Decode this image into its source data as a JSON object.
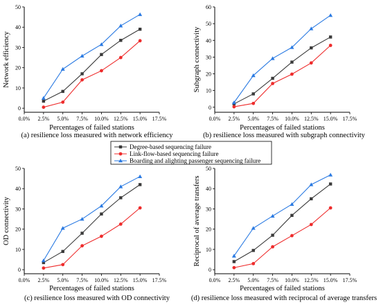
{
  "legend": [
    {
      "label": "Degree-based sequencing failure",
      "color": "#3a3a3a",
      "marker": "square"
    },
    {
      "label": "Link-flow-based sequencing failure",
      "color": "#ee2c2c",
      "marker": "circle"
    },
    {
      "label": "Boarding and alighting passenger sequencing failure",
      "color": "#2a7ae2",
      "marker": "triangle"
    }
  ],
  "chart_data": [
    {
      "type": "line",
      "caption": "(a) resilience loss measured with network efficiency",
      "xlabel": "Percentages of failed stations",
      "ylabel": "Network efficiency",
      "xlim": [
        0,
        17.5
      ],
      "ylim": [
        -2,
        50
      ],
      "xticks": [
        "0.0%",
        "2.5%",
        "5.0%",
        "7.5%",
        "10.0%",
        "12.5%",
        "15.0%",
        "17.5%"
      ],
      "yticks": [
        0,
        10,
        20,
        30,
        40,
        50
      ],
      "x": [
        2.5,
        5.0,
        7.5,
        10.0,
        12.5,
        15.0
      ],
      "series": [
        {
          "name": "Degree-based sequencing failure",
          "values": [
            3.5,
            8.3,
            17,
            26.5,
            33.5,
            39
          ]
        },
        {
          "name": "Link-flow-based sequencing failure",
          "values": [
            0.5,
            3,
            14,
            18.5,
            25,
            33.3
          ]
        },
        {
          "name": "Boarding and alighting passenger sequencing failure",
          "values": [
            5,
            19.3,
            25.8,
            31.5,
            40.7,
            46.3
          ]
        }
      ]
    },
    {
      "type": "line",
      "caption": "(b) resilience loss measured with subgraph connectivity",
      "xlabel": "Percentages of failed stations",
      "ylabel": "Subgraph connectivity",
      "xlim": [
        0,
        17.5
      ],
      "ylim": [
        -3,
        60
      ],
      "xticks": [
        "0.0%",
        "2.5%",
        "5.0%",
        "7.5%",
        "10.0%",
        "12.5%",
        "15.0%",
        "17.5%"
      ],
      "yticks": [
        0,
        10,
        20,
        30,
        40,
        50,
        60
      ],
      "x": [
        2.5,
        5.0,
        7.5,
        10.0,
        12.5,
        15.0
      ],
      "series": [
        {
          "name": "Degree-based sequencing failure",
          "values": [
            2,
            8,
            17.3,
            27,
            35.5,
            42
          ]
        },
        {
          "name": "Link-flow-based sequencing failure",
          "values": [
            0.3,
            2.3,
            14.2,
            19.8,
            26.5,
            37
          ]
        },
        {
          "name": "Boarding and alighting passenger sequencing failure",
          "values": [
            2.8,
            19,
            29.2,
            35.8,
            47,
            55
          ]
        }
      ]
    },
    {
      "type": "line",
      "caption": "(c) resilience loss measured with OD connectivity",
      "xlabel": "Percentages of failed stations",
      "ylabel": "OD connectivity",
      "xlim": [
        0,
        17.5
      ],
      "ylim": [
        -2,
        50
      ],
      "xticks": [
        "0.0%",
        "2.5%",
        "5.0%",
        "7.5%",
        "10.0%",
        "12.5%",
        "15.0%",
        "17.5%"
      ],
      "yticks": [
        0,
        10,
        20,
        30,
        40,
        50
      ],
      "x": [
        2.5,
        5.0,
        7.5,
        10.0,
        12.5,
        15.0
      ],
      "series": [
        {
          "name": "Degree-based sequencing failure",
          "values": [
            3.5,
            9,
            18,
            27.5,
            35.5,
            42
          ]
        },
        {
          "name": "Link-flow-based sequencing failure",
          "values": [
            0.8,
            2.5,
            11.8,
            16.5,
            22.5,
            30.5
          ]
        },
        {
          "name": "Boarding and alighting passenger sequencing failure",
          "values": [
            4.5,
            20.5,
            25,
            31.5,
            41,
            46
          ]
        }
      ]
    },
    {
      "type": "line",
      "caption": "(d) resilience loss measured with reciprocal of average transfers",
      "xlabel": "Percentages of failed stations",
      "ylabel": "Reciprocal of average transfers",
      "xlim": [
        0,
        17.5
      ],
      "ylim": [
        -2,
        50
      ],
      "xticks": [
        "0.0%",
        "2.5%",
        "5.0%",
        "7.5%",
        "10.0%",
        "12.5%",
        "15.0%",
        "17.5%"
      ],
      "yticks": [
        0,
        10,
        20,
        30,
        40,
        50
      ],
      "x": [
        2.5,
        5.0,
        7.5,
        10.0,
        12.5,
        15.0
      ],
      "series": [
        {
          "name": "Degree-based sequencing failure",
          "values": [
            4,
            9.5,
            17,
            26.8,
            35,
            42.3
          ]
        },
        {
          "name": "Link-flow-based sequencing failure",
          "values": [
            1,
            3,
            11.3,
            16.8,
            22.3,
            30.5
          ]
        },
        {
          "name": "Boarding and alighting passenger sequencing failure",
          "values": [
            6.8,
            20.5,
            26.5,
            32.3,
            42,
            46.8
          ]
        }
      ]
    }
  ]
}
